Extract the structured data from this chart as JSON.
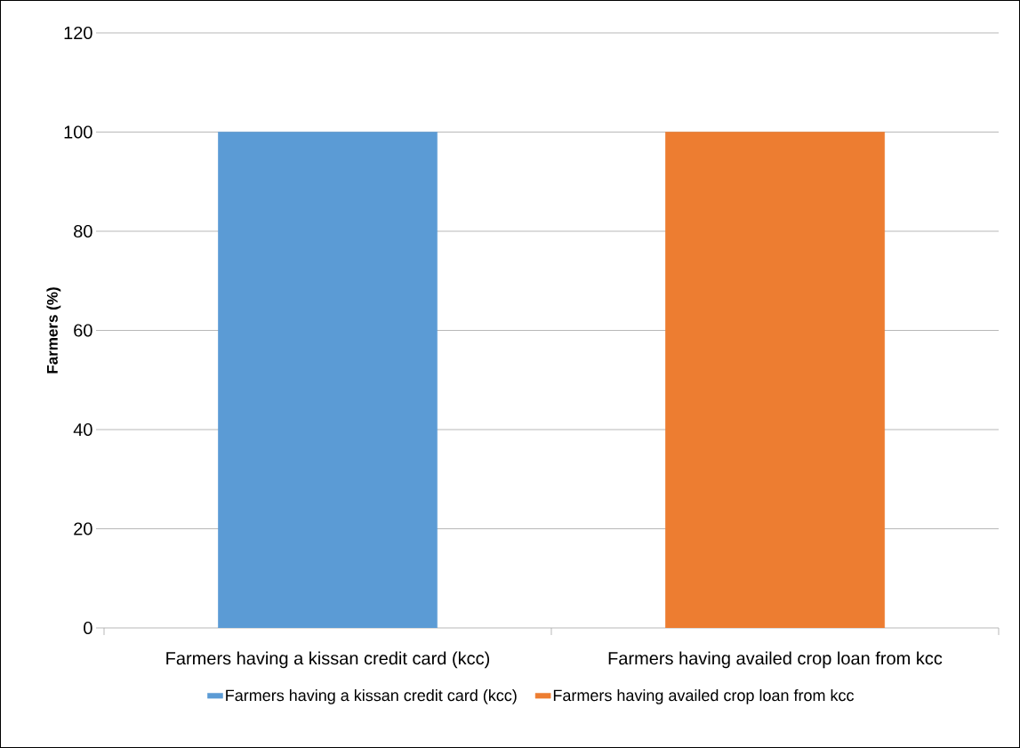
{
  "chart_data": {
    "type": "bar",
    "ylabel": "Farmers (%)",
    "categories": [
      "Farmers having a kissan credit card (kcc)",
      "Farmers having availed crop loan from kcc"
    ],
    "series": [
      {
        "name": "Farmers having a kissan credit card (kcc)",
        "color": "#5b9bd5",
        "values": [
          100,
          null
        ]
      },
      {
        "name": "Farmers having availed crop loan from kcc",
        "color": "#ed7d31",
        "values": [
          null,
          100
        ]
      }
    ],
    "ylim": [
      0,
      120
    ],
    "yticks": [
      0,
      20,
      40,
      60,
      80,
      100,
      120
    ],
    "grid": "y",
    "legend": "bottom"
  }
}
